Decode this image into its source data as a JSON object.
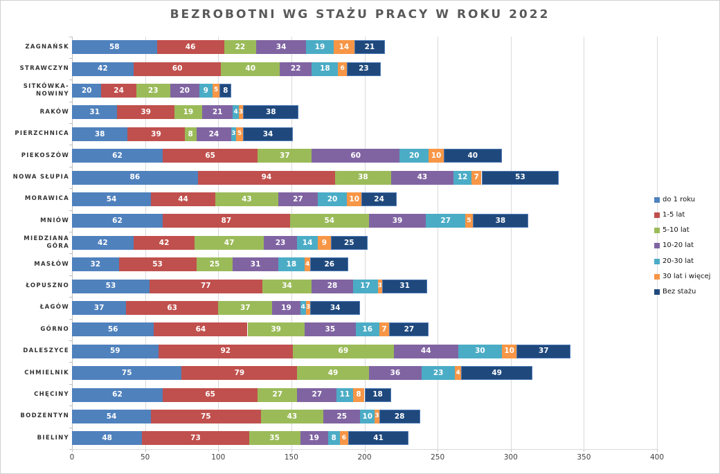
{
  "chart_data": {
    "type": "bar",
    "orientation": "horizontal",
    "stacked": true,
    "title": "BEZROBOTNI WG STAŻU PRACY W ROKU 2022",
    "categories": [
      "ZAGNAŃSK",
      "STRAWCZYN",
      "SITKÓWKA-NOWINY",
      "RAKÓW",
      "PIERZCHNICA",
      "PIEKOSZÓW",
      "NOWA SŁUPIA",
      "MORAWICA",
      "MNIÓW",
      "MIEDZIANA GÓRA",
      "MASŁÓW",
      "ŁOPUSZNO",
      "ŁAGÓW",
      "GÓRNO",
      "DALESZYCE",
      "CHMIELNIK",
      "CHĘCINY",
      "BODZENTYN",
      "BIELINY"
    ],
    "series": [
      {
        "name": "do 1 roku",
        "color": "#4F81BD",
        "values": [
          58,
          42,
          20,
          31,
          38,
          62,
          86,
          54,
          62,
          42,
          32,
          53,
          37,
          56,
          59,
          75,
          62,
          54,
          48
        ]
      },
      {
        "name": "1-5 lat",
        "color": "#C0504D",
        "values": [
          46,
          60,
          24,
          39,
          39,
          65,
          94,
          44,
          87,
          42,
          53,
          77,
          63,
          64,
          92,
          79,
          65,
          75,
          73
        ]
      },
      {
        "name": "5-10 lat",
        "color": "#9BBB59",
        "values": [
          22,
          40,
          23,
          19,
          8,
          37,
          38,
          43,
          54,
          47,
          25,
          34,
          37,
          39,
          69,
          49,
          27,
          43,
          35
        ]
      },
      {
        "name": "10-20 lat",
        "color": "#8064A2",
        "values": [
          34,
          22,
          20,
          21,
          24,
          60,
          43,
          27,
          39,
          23,
          31,
          28,
          19,
          35,
          44,
          36,
          27,
          25,
          19
        ]
      },
      {
        "name": "20-30 lat",
        "color": "#4BACC6",
        "values": [
          19,
          18,
          9,
          4,
          3,
          20,
          12,
          20,
          27,
          14,
          18,
          17,
          4,
          16,
          30,
          23,
          11,
          10,
          8
        ]
      },
      {
        "name": "30 lat i więcej",
        "color": "#F79646",
        "values": [
          14,
          6,
          5,
          3,
          5,
          10,
          7,
          10,
          5,
          9,
          4,
          3,
          3,
          7,
          10,
          4,
          8,
          3,
          6
        ]
      },
      {
        "name": "Bez stażu",
        "color": "#1F497D",
        "values": [
          21,
          23,
          8,
          38,
          34,
          40,
          53,
          24,
          38,
          25,
          26,
          31,
          34,
          27,
          37,
          49,
          18,
          28,
          41
        ]
      }
    ],
    "x_ticks": [
      0,
      50,
      100,
      150,
      200,
      250,
      300,
      350,
      400
    ],
    "xlim": [
      0,
      400
    ],
    "grid": true,
    "legend_position": "right",
    "last_series_border_color": "#4E7AB5"
  }
}
